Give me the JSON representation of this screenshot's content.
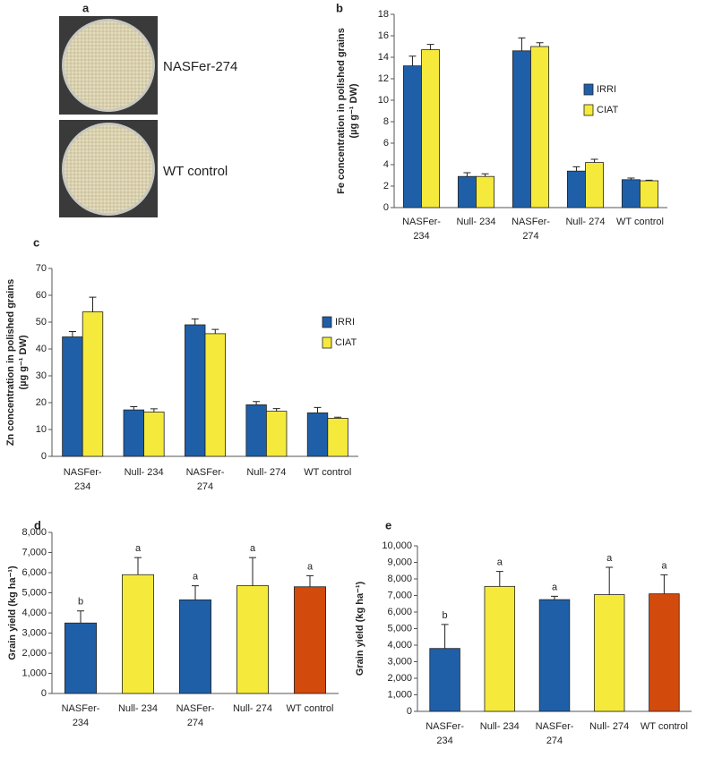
{
  "figure_a": {
    "label": "a",
    "images": [
      {
        "label": "NASFer-274"
      },
      {
        "label": "WT control"
      }
    ]
  },
  "chart_data": [
    {
      "type": "grouped-bar",
      "panel_label": "b",
      "ylabel": [
        "Fe concentration in polished grains",
        "(µg g⁻¹ DW)"
      ],
      "categories": [
        "NASFer-234",
        "Null- 234",
        "NASFer-274",
        "Null- 274",
        "WT control"
      ],
      "series": [
        {
          "name": "IRRI",
          "color": "#1f5fa8",
          "values": [
            13.2,
            2.9,
            14.6,
            3.4,
            2.6
          ],
          "errors": [
            0.9,
            0.35,
            1.2,
            0.4,
            0.15
          ]
        },
        {
          "name": "CIAT",
          "color": "#f5ea3c",
          "values": [
            14.7,
            2.9,
            15.0,
            4.2,
            2.5
          ],
          "errors": [
            0.5,
            0.25,
            0.35,
            0.3,
            0.05
          ]
        }
      ],
      "ylim": [
        0,
        18
      ],
      "yticks": [
        0,
        2,
        4,
        6,
        8,
        10,
        12,
        14,
        16,
        18
      ],
      "legend": "right"
    },
    {
      "type": "grouped-bar",
      "panel_label": "c",
      "ylabel": [
        "Zn concentration in polished grains",
        "(µg g⁻¹ DW)"
      ],
      "categories": [
        "NASFer-234",
        "Null- 234",
        "NASFer-274",
        "Null- 274",
        "WT control"
      ],
      "series": [
        {
          "name": "IRRI",
          "color": "#1f5fa8",
          "values": [
            44.5,
            17.3,
            49.0,
            19.2,
            16.2
          ],
          "errors": [
            2.0,
            1.2,
            2.2,
            1.2,
            2.0
          ]
        },
        {
          "name": "CIAT",
          "color": "#f5ea3c",
          "values": [
            53.8,
            16.5,
            45.7,
            16.8,
            14.2
          ],
          "errors": [
            5.5,
            1.2,
            1.6,
            1.0,
            0.4
          ]
        }
      ],
      "ylim": [
        0,
        70
      ],
      "yticks": [
        0,
        10,
        20,
        30,
        40,
        50,
        60,
        70
      ],
      "legend": "right"
    },
    {
      "type": "bar",
      "panel_label": "d",
      "ylabel": [
        "Grain yield (kg ha⁻¹)"
      ],
      "categories": [
        "NASFer-234",
        "Null- 234",
        "NASFer-274",
        "Null- 274",
        "WT control"
      ],
      "values": [
        3500,
        5900,
        4650,
        5350,
        5300
      ],
      "errors": [
        600,
        850,
        700,
        1400,
        550
      ],
      "annotations": [
        "b",
        "a",
        "a",
        "a",
        "a"
      ],
      "colors": [
        "#1f5fa8",
        "#f5ea3c",
        "#1f5fa8",
        "#f5ea3c",
        "#d24a0c"
      ],
      "ylim": [
        0,
        8000
      ],
      "yticks": [
        0,
        {
          "value": 1000,
          "label": "1,000"
        },
        {
          "value": 2000,
          "label": "2,000"
        },
        {
          "value": 3000,
          "label": "3,000"
        },
        {
          "value": 4000,
          "label": "4,000"
        },
        {
          "value": 5000,
          "label": "5,000"
        },
        {
          "value": 6000,
          "label": "6,000"
        },
        {
          "value": 7000,
          "label": "7,000"
        },
        {
          "value": 8000,
          "label": "8,000"
        }
      ]
    },
    {
      "type": "bar",
      "panel_label": "e",
      "ylabel": [
        "Grain yield (kg ha⁻¹)"
      ],
      "categories": [
        "NASFer-234",
        "Null- 234",
        "NASFer-274",
        "Null- 274",
        "WT control"
      ],
      "values": [
        3800,
        7550,
        6750,
        7050,
        7100
      ],
      "errors": [
        1450,
        900,
        200,
        1650,
        1150
      ],
      "annotations": [
        "b",
        "a",
        "a",
        "a",
        "a"
      ],
      "colors": [
        "#1f5fa8",
        "#f5ea3c",
        "#1f5fa8",
        "#f5ea3c",
        "#d24a0c"
      ],
      "ylim": [
        0,
        10000
      ],
      "yticks": [
        0,
        {
          "value": 1000,
          "label": "1,000"
        },
        {
          "value": 2000,
          "label": "2,000"
        },
        {
          "value": 3000,
          "label": "3,000"
        },
        {
          "value": 4000,
          "label": "4,000"
        },
        {
          "value": 5000,
          "label": "5,000"
        },
        {
          "value": 6000,
          "label": "6,000"
        },
        {
          "value": 7000,
          "label": "7,000"
        },
        {
          "value": 8000,
          "label": "8,000"
        },
        {
          "value": 9000,
          "label": "9,000"
        },
        {
          "value": 10000,
          "label": "10,000"
        }
      ]
    }
  ]
}
